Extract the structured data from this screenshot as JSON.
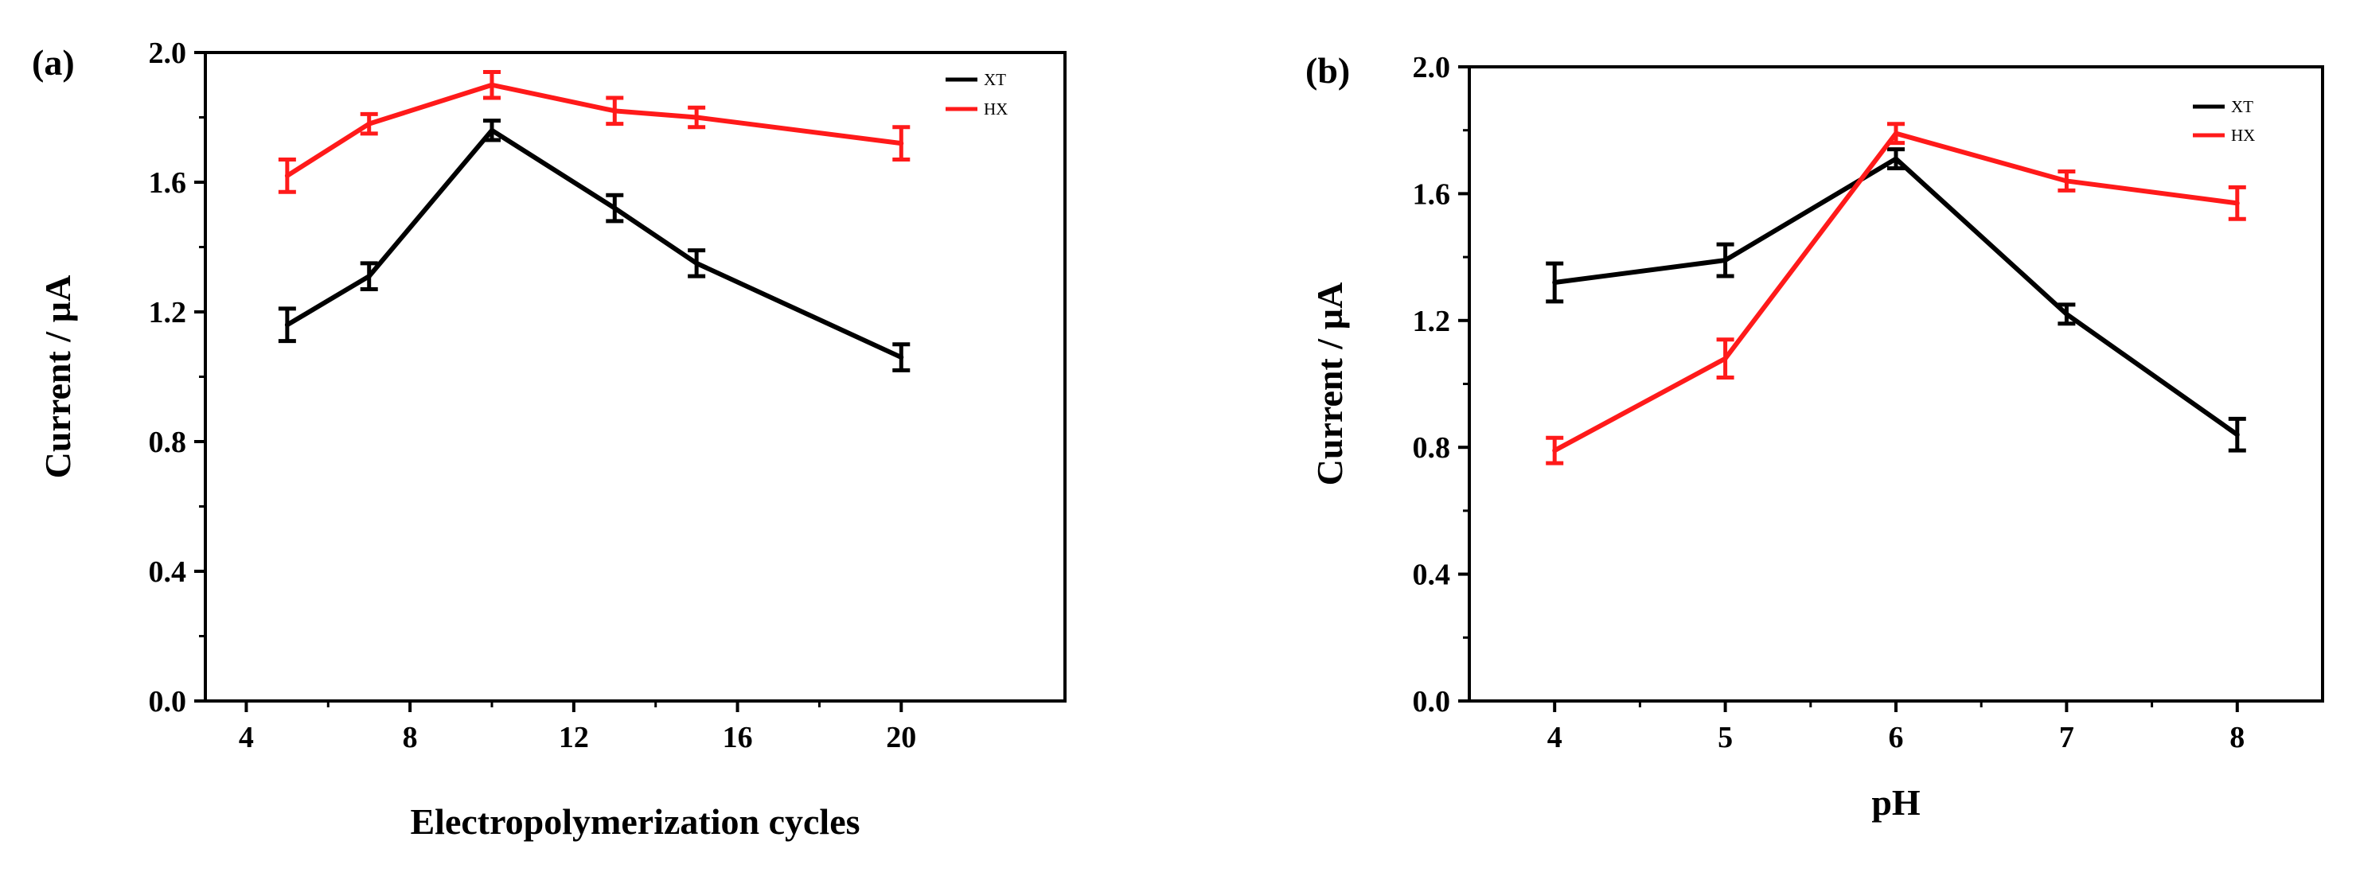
{
  "colors": {
    "XT": "#000000",
    "HX": "#ff1a1a"
  },
  "chart_data": [
    {
      "panel": "(a)",
      "type": "line",
      "title": "",
      "xlabel": "Electropolymerization cycles",
      "ylabel": "Current / µA",
      "xlim": [
        3,
        24
      ],
      "ylim": [
        0.0,
        2.0
      ],
      "xticks": [
        4,
        8,
        12,
        16,
        20
      ],
      "xtick_labels": [
        "4",
        "8",
        "12",
        "16",
        "20"
      ],
      "yticks": [
        0.0,
        0.4,
        0.8,
        1.2,
        1.6,
        2.0
      ],
      "ytick_labels": [
        "0.0",
        "0.4",
        "0.8",
        "1.2",
        "1.6",
        "2.0"
      ],
      "legend_position": "top-right",
      "x": [
        5,
        7,
        10,
        13,
        15,
        20
      ],
      "series": [
        {
          "name": "XT",
          "color": "#000000",
          "values": [
            1.16,
            1.31,
            1.76,
            1.52,
            1.35,
            1.06
          ],
          "errors": [
            0.05,
            0.04,
            0.03,
            0.04,
            0.04,
            0.04
          ]
        },
        {
          "name": "HX",
          "color": "#ff1a1a",
          "values": [
            1.62,
            1.78,
            1.9,
            1.82,
            1.8,
            1.72
          ],
          "errors": [
            0.05,
            0.03,
            0.04,
            0.04,
            0.03,
            0.05
          ]
        }
      ]
    },
    {
      "panel": "(b)",
      "type": "line",
      "title": "",
      "xlabel": "pH",
      "ylabel": "Current / µA",
      "xlim": [
        3.5,
        8.5
      ],
      "ylim": [
        0.0,
        2.0
      ],
      "xticks": [
        4,
        5,
        6,
        7,
        8
      ],
      "xtick_labels": [
        "4",
        "5",
        "6",
        "7",
        "8"
      ],
      "yticks": [
        0.0,
        0.4,
        0.8,
        1.2,
        1.6,
        2.0
      ],
      "ytick_labels": [
        "0.0",
        "0.4",
        "0.8",
        "1.2",
        "1.6",
        "2.0"
      ],
      "legend_position": "top-right",
      "x": [
        4,
        5,
        6,
        7,
        8
      ],
      "series": [
        {
          "name": "XT",
          "color": "#000000",
          "values": [
            1.32,
            1.39,
            1.71,
            1.22,
            0.84
          ],
          "errors": [
            0.06,
            0.05,
            0.03,
            0.03,
            0.05
          ]
        },
        {
          "name": "HX",
          "color": "#ff1a1a",
          "values": [
            0.79,
            1.08,
            1.79,
            1.64,
            1.57
          ],
          "errors": [
            0.04,
            0.06,
            0.03,
            0.03,
            0.05
          ]
        }
      ]
    }
  ]
}
